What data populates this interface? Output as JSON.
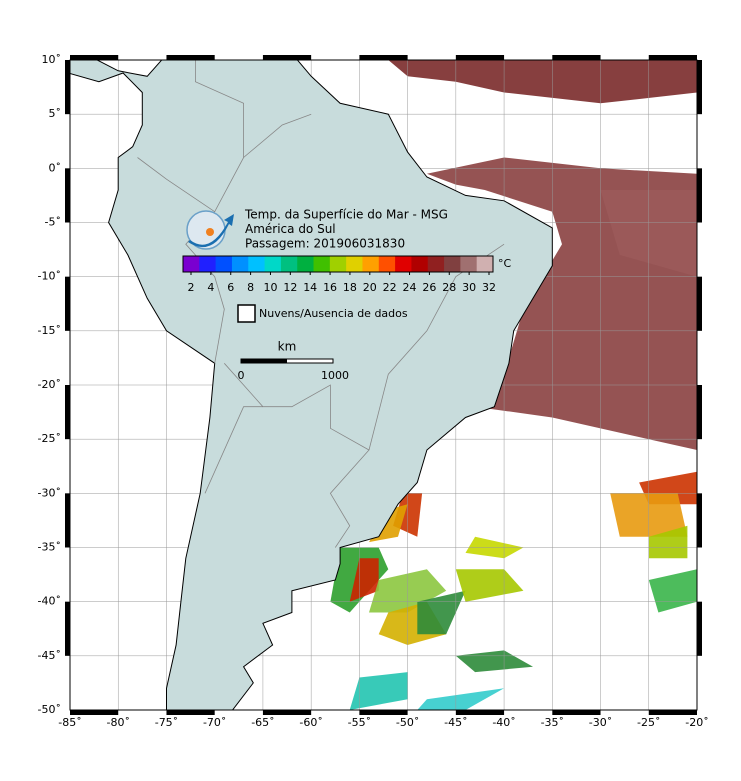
{
  "header": {
    "lines": [
      "Temp. da Superfície do Mar - MSG",
      "América do Sul",
      "Passagem: 201906031830"
    ]
  },
  "colorbar": {
    "ticks": [
      2,
      4,
      6,
      8,
      10,
      12,
      14,
      16,
      18,
      20,
      22,
      24,
      26,
      28,
      30,
      32
    ],
    "unit": "°C"
  },
  "legend": {
    "label": "Nuvens/Ausencia de dados"
  },
  "scale_bar": {
    "unit": "km",
    "start": "0",
    "end": "1000"
  },
  "lat_ticks": [
    {
      "value": 10,
      "label": "10˚"
    },
    {
      "value": 5,
      "label": "5˚"
    },
    {
      "value": 0,
      "label": "0˚"
    },
    {
      "value": -5,
      "label": "-5˚"
    },
    {
      "value": -10,
      "label": "-10˚"
    },
    {
      "value": -15,
      "label": "-15˚"
    },
    {
      "value": -20,
      "label": "-20˚"
    },
    {
      "value": -25,
      "label": "-25˚"
    },
    {
      "value": -30,
      "label": "-30˚"
    },
    {
      "value": -35,
      "label": "-35˚"
    },
    {
      "value": -40,
      "label": "-40˚"
    },
    {
      "value": -45,
      "label": "-45˚"
    },
    {
      "value": -50,
      "label": "-50˚"
    }
  ],
  "lon_ticks": [
    {
      "value": -85,
      "label": "-85˚"
    },
    {
      "value": -80,
      "label": "-80˚"
    },
    {
      "value": -75,
      "label": "-75˚"
    },
    {
      "value": -70,
      "label": "-70˚"
    },
    {
      "value": -65,
      "label": "-65˚"
    },
    {
      "value": -60,
      "label": "-60˚"
    },
    {
      "value": -55,
      "label": "-55˚"
    },
    {
      "value": -50,
      "label": "-50˚"
    },
    {
      "value": -45,
      "label": "-45˚"
    },
    {
      "value": -40,
      "label": "-40˚"
    },
    {
      "value": -35,
      "label": "-35˚"
    },
    {
      "value": -30,
      "label": "-30˚"
    },
    {
      "value": -25,
      "label": "-25˚"
    },
    {
      "value": -20,
      "label": "-20˚"
    }
  ]
}
